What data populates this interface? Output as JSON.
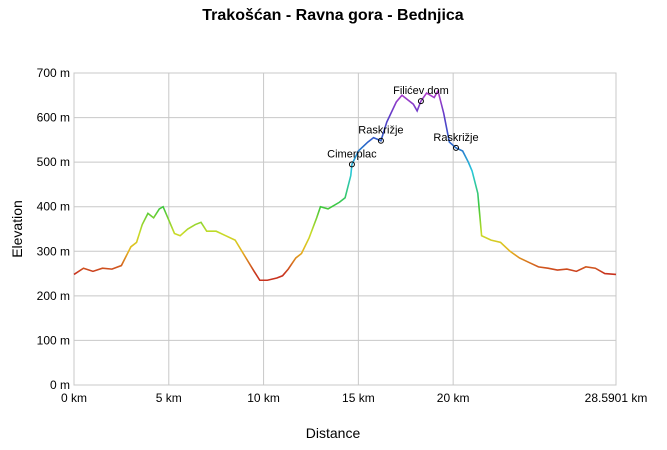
{
  "chart_data": {
    "type": "line",
    "title": "Trakošćan - Ravna gora - Bednjica",
    "x_label": "Distance",
    "y_label": "Elevation",
    "xlim": [
      0,
      28.5901
    ],
    "ylim": [
      0,
      700
    ],
    "xticks": [
      {
        "value": 0,
        "label": "0 km"
      },
      {
        "value": 5,
        "label": "5 km"
      },
      {
        "value": 10,
        "label": "10 km"
      },
      {
        "value": 15,
        "label": "15 km"
      },
      {
        "value": 20,
        "label": "20 km"
      },
      {
        "value": 28.5901,
        "label": "28.5901 km"
      }
    ],
    "yticks": [
      {
        "value": 0,
        "label": "0 m"
      },
      {
        "value": 100,
        "label": "100 m"
      },
      {
        "value": 200,
        "label": "200 m"
      },
      {
        "value": 300,
        "label": "300 m"
      },
      {
        "value": 400,
        "label": "400 m"
      },
      {
        "value": 500,
        "label": "500 m"
      },
      {
        "value": 600,
        "label": "600 m"
      },
      {
        "value": 700,
        "label": "700 m"
      }
    ],
    "grid": true,
    "color_scale": [
      {
        "value": 250,
        "color": "#c8321e"
      },
      {
        "value": 300,
        "color": "#e6b41e"
      },
      {
        "value": 340,
        "color": "#c8dc28"
      },
      {
        "value": 400,
        "color": "#3cc83c"
      },
      {
        "value": 480,
        "color": "#28c8dc"
      },
      {
        "value": 540,
        "color": "#2864c8"
      },
      {
        "value": 600,
        "color": "#5a3cc8"
      },
      {
        "value": 660,
        "color": "#b43cc8"
      }
    ],
    "series": [
      {
        "name": "Elevation",
        "x": [
          0,
          0.5,
          1,
          1.5,
          2,
          2.5,
          3,
          3.3,
          3.6,
          3.9,
          4.2,
          4.5,
          4.7,
          5.0,
          5.3,
          5.6,
          6.0,
          6.4,
          6.7,
          7.0,
          7.5,
          8.0,
          8.5,
          9.0,
          9.5,
          9.8,
          10.2,
          10.7,
          11.0,
          11.3,
          11.7,
          12.0,
          12.4,
          12.8,
          13.0,
          13.4,
          14.0,
          14.3,
          14.6,
          14.66,
          15.0,
          15.5,
          15.8,
          16.19,
          16.5,
          17.0,
          17.3,
          17.6,
          17.9,
          18.1,
          18.3,
          18.6,
          19.0,
          19.2,
          19.5,
          19.8,
          20.15,
          20.5,
          20.8,
          21.0,
          21.3,
          21.5,
          22.0,
          22.5,
          23.0,
          23.5,
          24.0,
          24.5,
          25.0,
          25.5,
          26.0,
          26.5,
          27.0,
          27.5,
          28.0,
          28.5901
        ],
        "values": [
          248,
          262,
          255,
          262,
          260,
          268,
          310,
          320,
          360,
          385,
          375,
          395,
          400,
          370,
          340,
          335,
          350,
          360,
          365,
          345,
          345,
          335,
          325,
          290,
          255,
          235,
          235,
          240,
          245,
          260,
          285,
          295,
          330,
          375,
          400,
          395,
          410,
          420,
          470,
          495,
          525,
          545,
          555,
          548,
          590,
          635,
          650,
          640,
          630,
          615,
          637,
          655,
          645,
          660,
          610,
          545,
          532,
          525,
          500,
          480,
          430,
          335,
          325,
          320,
          300,
          285,
          275,
          265,
          262,
          258,
          260,
          255,
          265,
          262,
          250,
          248
        ]
      }
    ],
    "annotations": [
      {
        "text": "Cimerplac",
        "x": 14.66,
        "y": 495
      },
      {
        "text": "Raskrižje",
        "x": 16.19,
        "y": 548
      },
      {
        "text": "Filićev dom",
        "x": 18.3,
        "y": 637
      },
      {
        "text": "Raskrižje",
        "x": 20.15,
        "y": 532
      }
    ]
  }
}
